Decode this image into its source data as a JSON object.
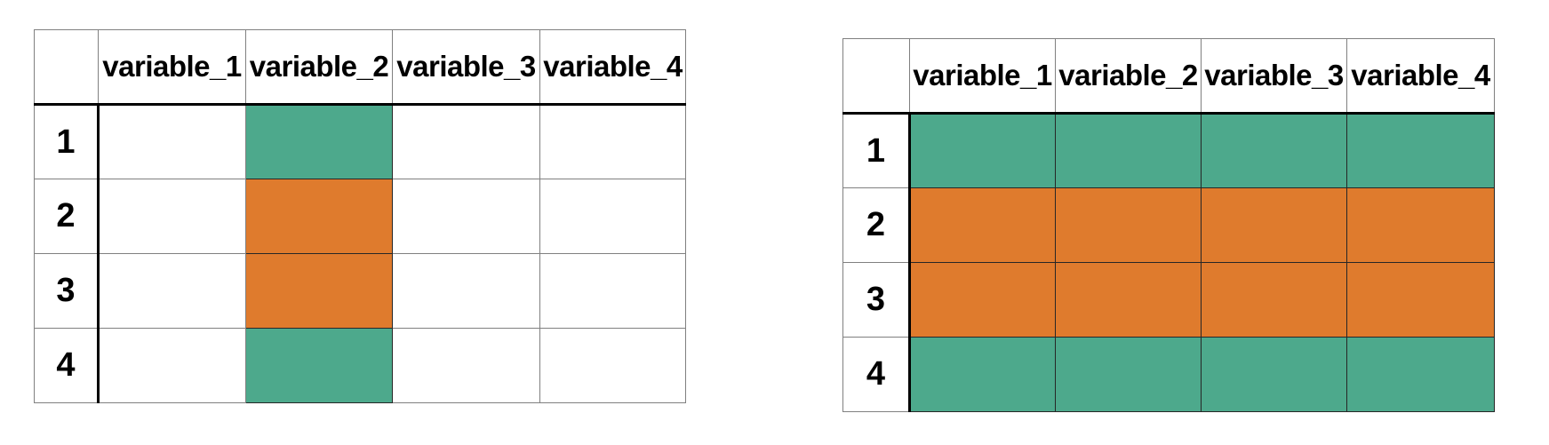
{
  "colors": {
    "teal": "#4DA98C",
    "orange": "#DF7B2D",
    "white": "#FFFFFF",
    "grid": "#808080",
    "heavy_rule": "#000000",
    "text": "#000000",
    "background": "#FFFFFF"
  },
  "chart_data": [
    {
      "type": "table",
      "side": "left",
      "title": "",
      "corner_label": "",
      "columns": [
        "variable_1",
        "variable_2",
        "variable_3",
        "variable_4"
      ],
      "row_labels": [
        "1",
        "2",
        "3",
        "4"
      ],
      "cell_fill": [
        [
          "white",
          "teal",
          "white",
          "white"
        ],
        [
          "white",
          "orange",
          "white",
          "white"
        ],
        [
          "white",
          "orange",
          "white",
          "white"
        ],
        [
          "white",
          "teal",
          "white",
          "white"
        ]
      ]
    },
    {
      "type": "table",
      "side": "right",
      "title": "",
      "corner_label": "",
      "columns": [
        "variable_1",
        "variable_2",
        "variable_3",
        "variable_4"
      ],
      "row_labels": [
        "1",
        "2",
        "3",
        "4"
      ],
      "cell_fill": [
        [
          "teal",
          "teal",
          "teal",
          "teal"
        ],
        [
          "orange",
          "orange",
          "orange",
          "orange"
        ],
        [
          "orange",
          "orange",
          "orange",
          "orange"
        ],
        [
          "teal",
          "teal",
          "teal",
          "teal"
        ]
      ]
    }
  ]
}
